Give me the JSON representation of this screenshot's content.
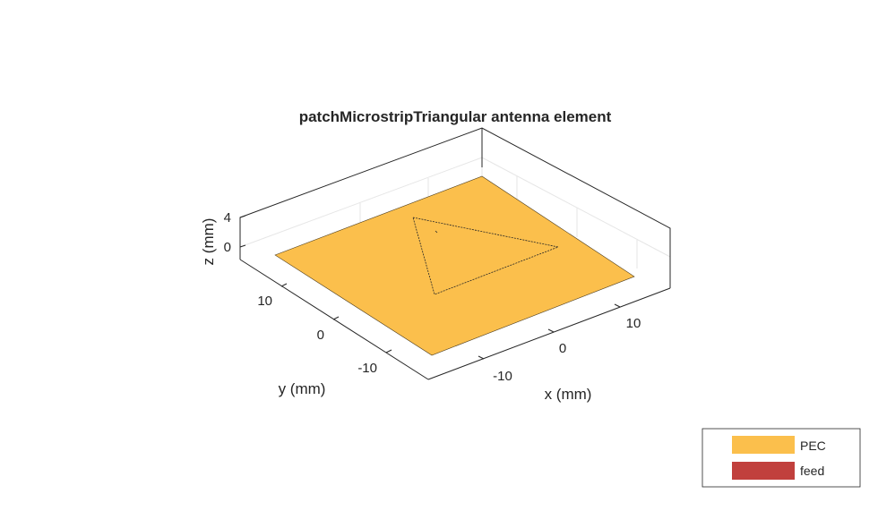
{
  "chart_data": {
    "type": "3d-surface",
    "title": "patchMicrostripTriangular antenna element",
    "xlabel": "x (mm)",
    "ylabel": "y (mm)",
    "zlabel": "z (mm)",
    "x_ticks": [
      "-10",
      "0",
      "10"
    ],
    "y_ticks": [
      "-10",
      "0",
      "10"
    ],
    "z_ticks": [
      "0",
      "4"
    ],
    "grid": true,
    "legend_position": "bottom-right",
    "legend": [
      {
        "label": "PEC",
        "color": "#fbbf4c"
      },
      {
        "label": "feed",
        "color": "#c1403d"
      }
    ]
  }
}
